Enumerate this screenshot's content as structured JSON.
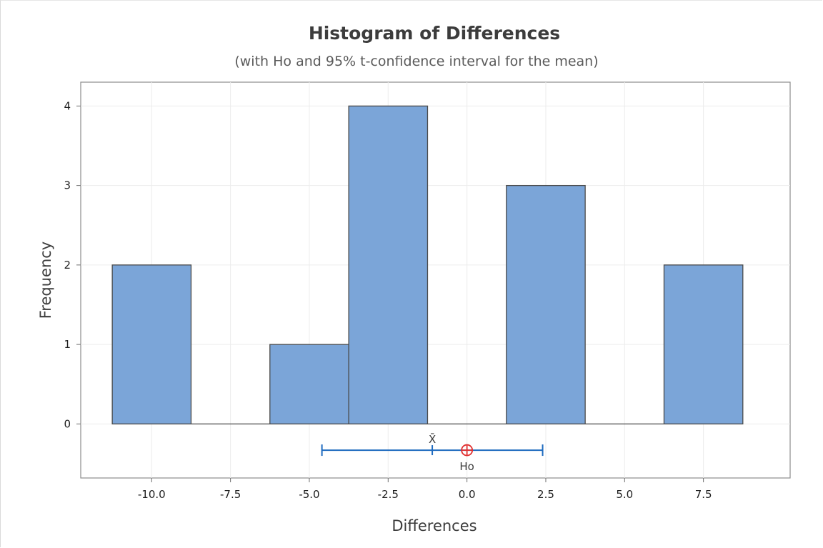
{
  "chart_data": {
    "type": "bar",
    "title": "Histogram of Differences",
    "subtitle": "(with Ho and 95% t-confidence interval for the mean)",
    "xlabel": "Differences",
    "ylabel": "Frequency",
    "xlim": [
      -12.25,
      10.25
    ],
    "ylim": [
      -0.68,
      4.3
    ],
    "x_ticks": [
      -10.0,
      -7.5,
      -5.0,
      -2.5,
      0.0,
      2.5,
      5.0,
      7.5
    ],
    "x_tick_labels": [
      "-10.0",
      "-7.5",
      "-5.0",
      "-2.5",
      "0.0",
      "2.5",
      "5.0",
      "7.5"
    ],
    "y_ticks": [
      0,
      1,
      2,
      3,
      4
    ],
    "y_tick_labels": [
      "0",
      "1",
      "2",
      "3",
      "4"
    ],
    "bin_width": 2.5,
    "bin_midpoints": [
      -10.0,
      -7.5,
      -5.0,
      -2.5,
      0.0,
      2.5,
      5.0,
      7.5
    ],
    "values": [
      2,
      0,
      1,
      4,
      0,
      3,
      0,
      2
    ],
    "grid": true,
    "bar_color": "#7ba5d8",
    "bar_edge_color": "#4a4a4a",
    "ci_color": "#1f6bbf",
    "ho_color": "#e03030",
    "confidence_interval": {
      "lower": -4.6,
      "upper": 2.4,
      "mean": -1.1,
      "y": -0.33,
      "mean_label": "X̄"
    },
    "null_hypothesis": {
      "value": 0.0,
      "label": "Ho"
    }
  }
}
